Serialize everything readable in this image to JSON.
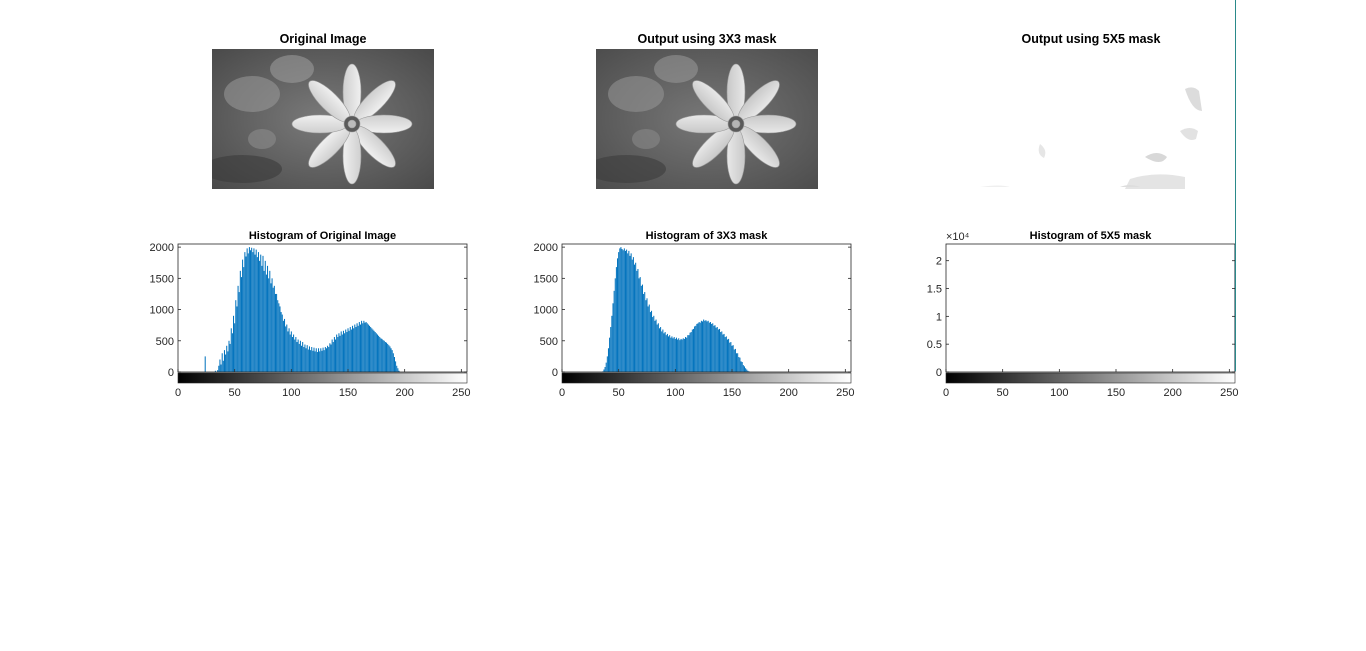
{
  "images": [
    {
      "title": "Original Image",
      "variant": "original"
    },
    {
      "title": "Output using 3X3 mask",
      "variant": "smoothed"
    },
    {
      "title": "Output using 5X5 mask",
      "variant": "washed"
    }
  ],
  "colors": {
    "bar": "#0072BD",
    "axis": "#262626"
  },
  "chart_data": [
    {
      "type": "bar",
      "title": "Histogram of Original Image",
      "xlim": [
        0,
        255
      ],
      "ylim": [
        0,
        2050
      ],
      "xticks": [
        "0",
        "50",
        "100",
        "150",
        "200",
        "250"
      ],
      "yticks": [
        "0",
        "500",
        "1000",
        "1500",
        "2000"
      ],
      "exponent": "",
      "grid": false,
      "colorbar": "grayscale",
      "bins": {
        "start": 24,
        "values": [
          250,
          0,
          0,
          0,
          0,
          0,
          0,
          0,
          0,
          20,
          0,
          30,
          100,
          200,
          120,
          300,
          180,
          350,
          280,
          420,
          330,
          500,
          450,
          700,
          620,
          900,
          780,
          1150,
          1050,
          1380,
          1280,
          1620,
          1520,
          1800,
          1680,
          1920,
          1850,
          1980,
          1900,
          2000,
          1950,
          1990,
          1920,
          1980,
          1880,
          1960,
          1840,
          1920,
          1780,
          1880,
          1700,
          1860,
          1620,
          1780,
          1560,
          1700,
          1500,
          1620,
          1420,
          1500,
          1350,
          1380,
          1250,
          1250,
          1150,
          1100,
          1050,
          960,
          920,
          820,
          850,
          730,
          760,
          650,
          700,
          600,
          650,
          560,
          600,
          520,
          560,
          480,
          520,
          450,
          500,
          420,
          480,
          400,
          440,
          380,
          430,
          360,
          410,
          350,
          400,
          340,
          390,
          330,
          380,
          320,
          380,
          330,
          380,
          340,
          390,
          350,
          400,
          380,
          420,
          400,
          460,
          440,
          520,
          480,
          560,
          520,
          600,
          560,
          620,
          580,
          650,
          600,
          660,
          620,
          680,
          640,
          700,
          660,
          720,
          680,
          740,
          700,
          760,
          720,
          780,
          740,
          800,
          760,
          820,
          780,
          820,
          790,
          800,
          780,
          760,
          740,
          720,
          700,
          680,
          660,
          640,
          620,
          600,
          580,
          560,
          540,
          530,
          510,
          500,
          480,
          470,
          450,
          430,
          410,
          380,
          350,
          300,
          240,
          170,
          100,
          60,
          20
        ]
      }
    },
    {
      "type": "bar",
      "title": "Histogram of 3X3 mask",
      "xlim": [
        0,
        255
      ],
      "ylim": [
        0,
        2050
      ],
      "xticks": [
        "0",
        "50",
        "100",
        "150",
        "200",
        "250"
      ],
      "yticks": [
        "0",
        "500",
        "1000",
        "1500",
        "2000"
      ],
      "exponent": "",
      "grid": false,
      "colorbar": "grayscale",
      "bins": {
        "start": 36,
        "values": [
          10,
          40,
          80,
          150,
          250,
          380,
          550,
          720,
          900,
          1100,
          1300,
          1500,
          1680,
          1820,
          1920,
          1980,
          2000,
          1970,
          1950,
          1980,
          1940,
          1960,
          1900,
          1940,
          1860,
          1900,
          1800,
          1840,
          1720,
          1750,
          1620,
          1650,
          1500,
          1520,
          1380,
          1400,
          1250,
          1280,
          1150,
          1180,
          1050,
          1080,
          960,
          980,
          880,
          900,
          820,
          840,
          760,
          780,
          700,
          720,
          650,
          680,
          620,
          640,
          590,
          610,
          570,
          590,
          550,
          570,
          540,
          560,
          530,
          550,
          520,
          540,
          510,
          530,
          520,
          540,
          530,
          560,
          550,
          590,
          590,
          630,
          640,
          680,
          690,
          730,
          740,
          770,
          780,
          800,
          790,
          820,
          810,
          840,
          820,
          830,
          810,
          820,
          790,
          800,
          770,
          780,
          740,
          750,
          710,
          720,
          680,
          690,
          640,
          650,
          600,
          610,
          560,
          570,
          520,
          530,
          470,
          480,
          420,
          430,
          360,
          370,
          300,
          300,
          240,
          230,
          170,
          160,
          110,
          90,
          60,
          40,
          20,
          10
        ]
      }
    },
    {
      "type": "bar",
      "title": "Histogram of 5X5 mask",
      "xlim": [
        0,
        255
      ],
      "ylim": [
        0,
        23000
      ],
      "xticks": [
        "0",
        "50",
        "100",
        "150",
        "200",
        "250"
      ],
      "yticks": [
        "0",
        "0.5",
        "1",
        "1.5",
        "2"
      ],
      "exponent": "×10⁴",
      "grid": false,
      "colorbar": "grayscale",
      "bins": {
        "start": 255,
        "values": [
          23000
        ]
      }
    }
  ]
}
